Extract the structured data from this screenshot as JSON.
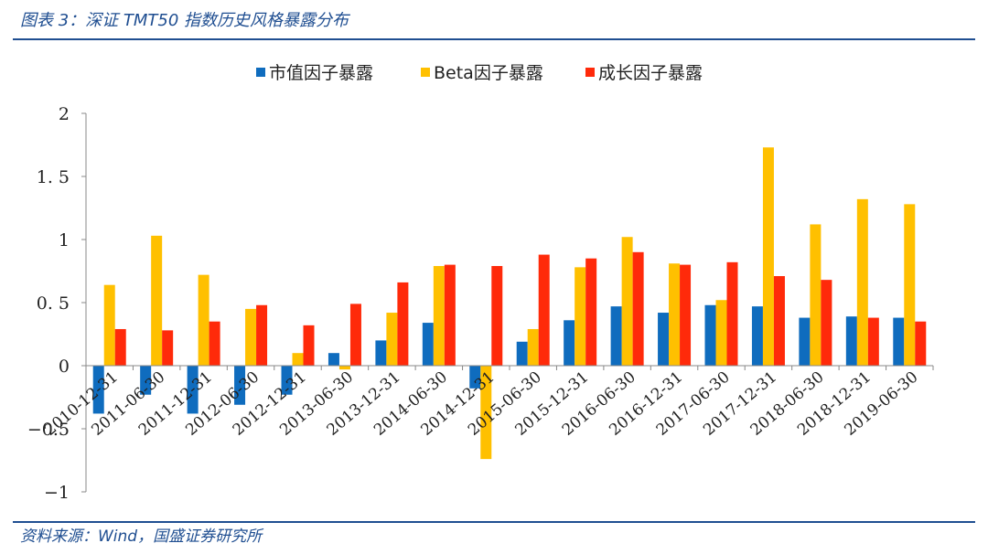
{
  "header": {
    "title": "图表 3：深证 TMT50 指数历史风格暴露分布"
  },
  "footer": {
    "source": "资料来源：Wind，国盛证券研究所"
  },
  "colors": {
    "accent": "#1f4e91",
    "series": [
      "#0f6cbe",
      "#ffc000",
      "#ff2a0a"
    ]
  },
  "chart_data": {
    "type": "bar",
    "title": "",
    "xlabel": "",
    "ylabel": "",
    "ylim": [
      -1,
      2
    ],
    "yticks": [
      -1,
      -0.5,
      0,
      0.5,
      1,
      1.5,
      2
    ],
    "ytick_labels": [
      "−1",
      "−0.5",
      "0",
      "0. 5",
      "1",
      "1. 5",
      "2"
    ],
    "grid": false,
    "legend_position": "top-center",
    "categories": [
      "2010-12-31",
      "2011-06-30",
      "2011-12-31",
      "2012-06-30",
      "2012-12-31",
      "2013-06-30",
      "2013-12-31",
      "2014-06-30",
      "2014-12-31",
      "2015-06-30",
      "2015-12-31",
      "2016-06-30",
      "2016-12-31",
      "2017-06-30",
      "2017-12-31",
      "2018-06-30",
      "2018-12-31",
      "2019-06-30"
    ],
    "series": [
      {
        "name": "市值因子暴露",
        "color": "#0f6cbe",
        "values": [
          -0.38,
          -0.23,
          -0.38,
          -0.31,
          -0.23,
          0.1,
          0.2,
          0.34,
          -0.18,
          0.19,
          0.36,
          0.47,
          0.42,
          0.48,
          0.47,
          0.38,
          0.39,
          0.38
        ]
      },
      {
        "name": "Beta因子暴露",
        "color": "#ffc000",
        "values": [
          0.64,
          1.03,
          0.72,
          0.45,
          0.1,
          -0.03,
          0.42,
          0.79,
          -0.74,
          0.29,
          0.78,
          1.02,
          0.81,
          0.52,
          1.73,
          1.12,
          1.32,
          1.28
        ]
      },
      {
        "name": "成长因子暴露",
        "color": "#ff2a0a",
        "values": [
          0.29,
          0.28,
          0.35,
          0.48,
          0.32,
          0.49,
          0.66,
          0.8,
          0.79,
          0.88,
          0.85,
          0.9,
          0.8,
          0.82,
          0.71,
          0.68,
          0.38,
          0.35
        ]
      }
    ]
  }
}
